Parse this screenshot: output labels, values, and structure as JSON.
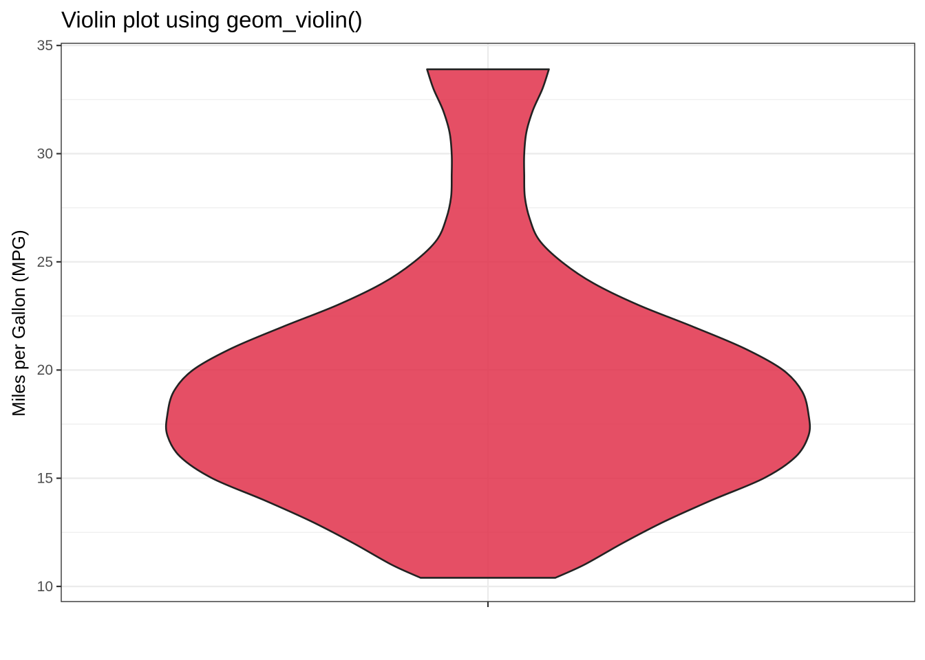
{
  "chart_data": {
    "type": "violin",
    "title": "Violin plot using geom_violin()",
    "xlabel": "",
    "ylabel": "Miles per Gallon (MPG)",
    "ylim": [
      9.3,
      35.1
    ],
    "y_ticks": [
      10,
      15,
      20,
      25,
      30,
      35
    ],
    "y_minor_ticks": [
      12.5,
      17.5,
      22.5,
      27.5,
      32.5
    ],
    "x_categories": [
      ""
    ],
    "grid": true,
    "series": [
      {
        "name": "mpg",
        "fill_color": "#e0304a",
        "fill_opacity": 0.85,
        "outline_color": "#222222",
        "y_min": 10.4,
        "y_max": 33.9,
        "density_profile": [
          {
            "y": 10.4,
            "half_width": 0.21
          },
          {
            "y": 11.0,
            "half_width": 0.3
          },
          {
            "y": 12.0,
            "half_width": 0.42
          },
          {
            "y": 13.0,
            "half_width": 0.55
          },
          {
            "y": 14.0,
            "half_width": 0.7
          },
          {
            "y": 15.0,
            "half_width": 0.86
          },
          {
            "y": 16.0,
            "half_width": 0.96
          },
          {
            "y": 17.0,
            "half_width": 1.0
          },
          {
            "y": 17.9,
            "half_width": 1.0
          },
          {
            "y": 19.0,
            "half_width": 0.98
          },
          {
            "y": 20.0,
            "half_width": 0.92
          },
          {
            "y": 21.0,
            "half_width": 0.8
          },
          {
            "y": 22.0,
            "half_width": 0.64
          },
          {
            "y": 23.0,
            "half_width": 0.47
          },
          {
            "y": 24.0,
            "half_width": 0.33
          },
          {
            "y": 25.0,
            "half_width": 0.23
          },
          {
            "y": 26.0,
            "half_width": 0.16
          },
          {
            "y": 27.0,
            "half_width": 0.13
          },
          {
            "y": 28.0,
            "half_width": 0.115
          },
          {
            "y": 29.0,
            "half_width": 0.113
          },
          {
            "y": 30.0,
            "half_width": 0.113
          },
          {
            "y": 31.0,
            "half_width": 0.12
          },
          {
            "y": 32.0,
            "half_width": 0.14
          },
          {
            "y": 33.0,
            "half_width": 0.17
          },
          {
            "y": 33.9,
            "half_width": 0.19
          }
        ]
      }
    ],
    "colors": {
      "panel_border": "#333333",
      "grid": "#ebebeb",
      "tick_text": "#4d4d4d"
    }
  }
}
